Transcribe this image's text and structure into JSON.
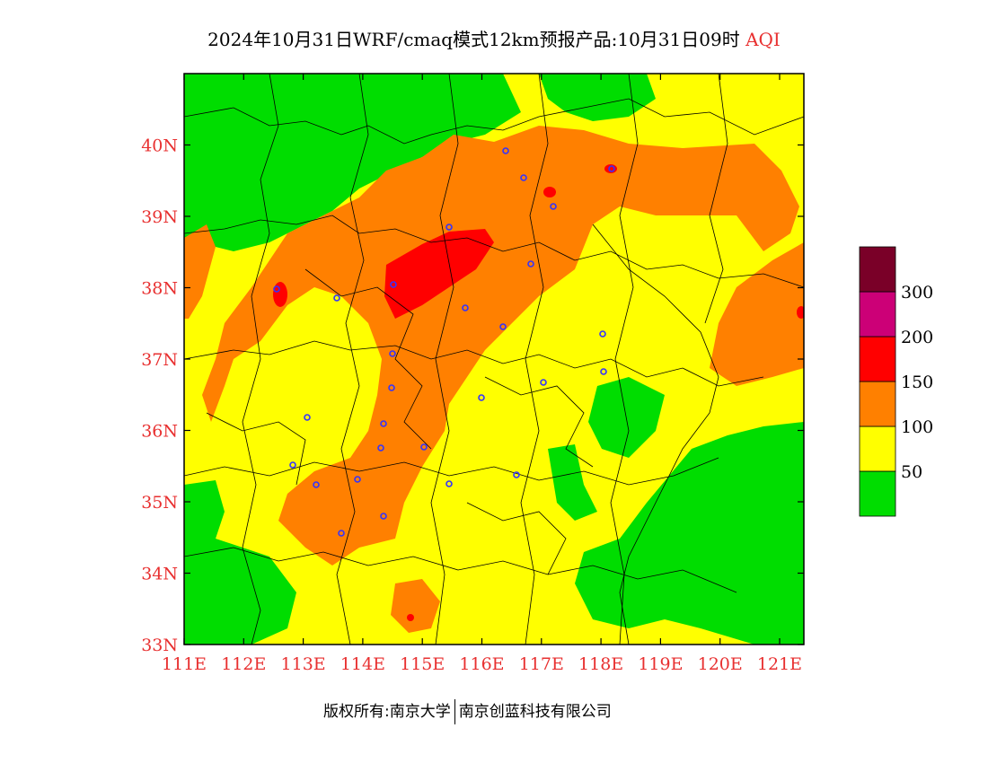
{
  "title": {
    "main": "2024年10月31日WRF/cmaq模式12km预报产品:10月31日09时",
    "variable": "AQI"
  },
  "axes": {
    "lat_labels": [
      "33N",
      "34N",
      "35N",
      "36N",
      "37N",
      "38N",
      "39N",
      "40N"
    ],
    "lon_labels": [
      "111E",
      "112E",
      "113E",
      "114E",
      "115E",
      "116E",
      "117E",
      "118E",
      "119E",
      "120E",
      "121E"
    ],
    "label_color": "#e83030"
  },
  "legend": {
    "bins": [
      {
        "color": "#00dd00",
        "label": "50"
      },
      {
        "color": "#ffff00",
        "label": "100"
      },
      {
        "color": "#ff8000",
        "label": "150"
      },
      {
        "color": "#ff0000",
        "label": "200"
      },
      {
        "color": "#cc0077",
        "label": "300"
      },
      {
        "color": "#7a0028",
        "label": ""
      }
    ]
  },
  "footer": {
    "left": "版权所有:南京大学",
    "right": "南京创蓝科技有限公司"
  },
  "colors": {
    "good": "#00dd00",
    "moderate": "#ffff00",
    "usg": "#ff8000",
    "unhealthy": "#ff0000",
    "station": "#3333ff"
  }
}
